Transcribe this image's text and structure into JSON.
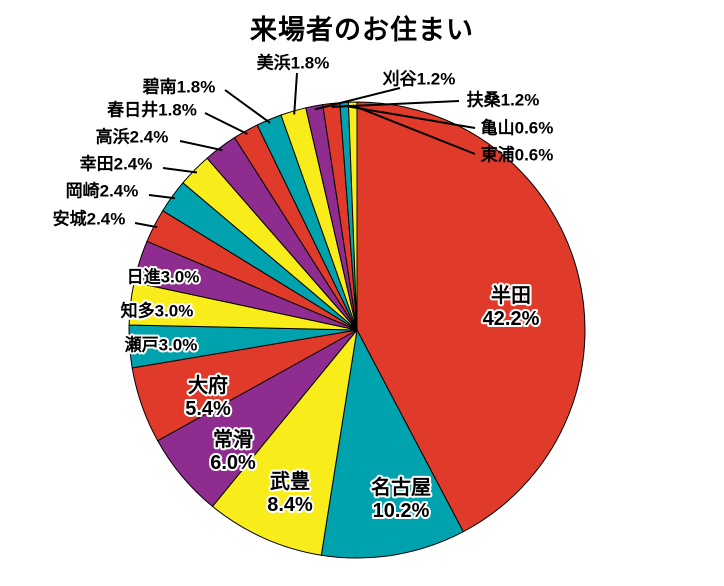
{
  "chart_data": {
    "type": "pie",
    "title": "来場者のお住まい",
    "unit": "%",
    "start_angle_deg": -90,
    "direction": "clockwise",
    "legend": "none",
    "palette_cycle": [
      "#e03a2a",
      "#00a3ad",
      "#f8ec1b",
      "#8e2c90"
    ],
    "outline_color": "#000000",
    "slices": [
      {
        "label": "半田",
        "value": 42.2,
        "pct_label": "42.2%",
        "color": "#e03a2a"
      },
      {
        "label": "名古屋",
        "value": 10.2,
        "pct_label": "10.2%",
        "color": "#00a3ad"
      },
      {
        "label": "武豊",
        "value": 8.4,
        "pct_label": "8.4%",
        "color": "#f8ec1b"
      },
      {
        "label": "常滑",
        "value": 6.0,
        "pct_label": "6.0%",
        "color": "#8e2c90"
      },
      {
        "label": "大府",
        "value": 5.4,
        "pct_label": "5.4%",
        "color": "#e03a2a"
      },
      {
        "label": "瀬戸",
        "value": 3.0,
        "pct_label": "3.0%",
        "color": "#00a3ad"
      },
      {
        "label": "知多",
        "value": 3.0,
        "pct_label": "3.0%",
        "color": "#f8ec1b"
      },
      {
        "label": "日進",
        "value": 3.0,
        "pct_label": "3.0%",
        "color": "#8e2c90"
      },
      {
        "label": "安城",
        "value": 2.4,
        "pct_label": "2.4%",
        "color": "#e03a2a"
      },
      {
        "label": "岡崎",
        "value": 2.4,
        "pct_label": "2.4%",
        "color": "#00a3ad"
      },
      {
        "label": "幸田",
        "value": 2.4,
        "pct_label": "2.4%",
        "color": "#f8ec1b"
      },
      {
        "label": "高浜",
        "value": 2.4,
        "pct_label": "2.4%",
        "color": "#8e2c90"
      },
      {
        "label": "春日井",
        "value": 1.8,
        "pct_label": "1.8%",
        "color": "#e03a2a"
      },
      {
        "label": "碧南",
        "value": 1.8,
        "pct_label": "1.8%",
        "color": "#00a3ad"
      },
      {
        "label": "美浜",
        "value": 1.8,
        "pct_label": "1.8%",
        "color": "#f8ec1b"
      },
      {
        "label": "刈谷",
        "value": 1.2,
        "pct_label": "1.2%",
        "color": "#8e2c90"
      },
      {
        "label": "扶桑",
        "value": 1.2,
        "pct_label": "1.2%",
        "color": "#e03a2a"
      },
      {
        "label": "亀山",
        "value": 0.6,
        "pct_label": "0.6%",
        "color": "#00a3ad"
      },
      {
        "label": "東浦",
        "value": 0.6,
        "pct_label": "0.6%",
        "color": "#f8ec1b"
      }
    ]
  }
}
